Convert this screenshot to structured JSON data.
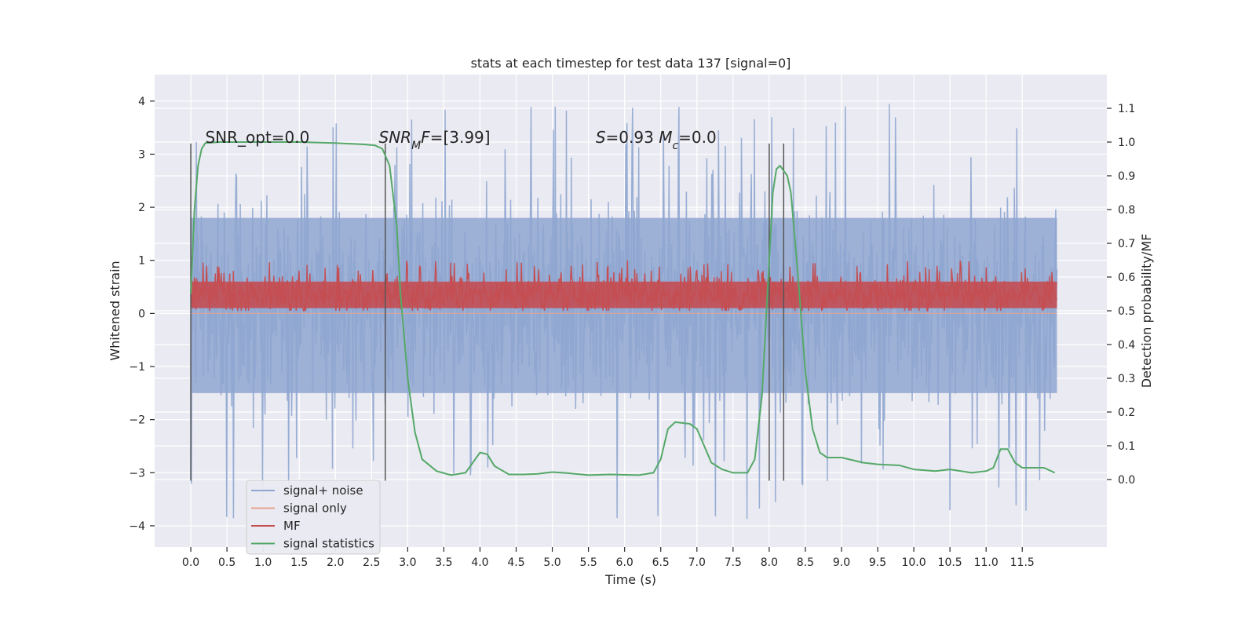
{
  "chart_data": {
    "type": "line",
    "title": "stats at each timestep for test data 137 [signal=0]",
    "xlabel": "Time (s)",
    "ylabel_left": "Whitened strain",
    "ylabel_right": "Detection probability/MF",
    "xlim": [
      -0.5,
      12.67
    ],
    "ylim_left": [
      -4.4,
      4.5
    ],
    "ylim_right": [
      -0.2,
      1.2
    ],
    "grid": true,
    "x_ticks": [
      0.0,
      0.5,
      1.0,
      1.5,
      2.0,
      2.5,
      3.0,
      3.5,
      4.0,
      4.5,
      5.0,
      5.5,
      6.0,
      6.5,
      7.0,
      7.5,
      8.0,
      8.5,
      9.0,
      9.5,
      10.0,
      10.5,
      11.0,
      11.5
    ],
    "x_tick_labels": [
      "0.0",
      "0.5",
      "1.0",
      "1.5",
      "2.0",
      "2.5",
      "3.0",
      "3.5",
      "4.0",
      "4.5",
      "5.0",
      "5.5",
      "6.0",
      "6.5",
      "7.0",
      "7.5",
      "8.0",
      "8.5",
      "9.0",
      "9.5",
      "10.0",
      "10.5",
      "11.0",
      "11.5"
    ],
    "y_left_ticks": [
      4,
      3,
      2,
      1,
      0,
      -1,
      -2,
      -3,
      -4
    ],
    "y_left_tick_labels": [
      "4",
      "3",
      "2",
      "1",
      "0",
      "−1",
      "−2",
      "−3",
      "−4"
    ],
    "y_right_ticks": [
      1.1,
      1.0,
      0.9,
      0.8,
      0.7,
      0.6,
      0.5,
      0.4,
      0.3,
      0.2,
      0.1,
      0.0
    ],
    "y_right_tick_labels": [
      "1.1",
      "1.0",
      "0.9",
      "0.8",
      "0.7",
      "0.6",
      "0.5",
      "0.4",
      "0.3",
      "0.2",
      "0.1",
      "0.0"
    ],
    "legend_placement": "lower-left",
    "series": [
      {
        "name": "signal+ noise",
        "axis": "left",
        "color": "#8fa6d0",
        "description": "dense noise trace between roughly -3 and +3",
        "x_range": [
          0.0,
          11.98
        ],
        "band_core": [
          -1.5,
          1.8
        ],
        "extremes": [
          -3.9,
          4.1
        ]
      },
      {
        "name": "signal only",
        "axis": "left",
        "color": "#e6a58f",
        "values_constant": 0.0
      },
      {
        "name": "MF",
        "axis": "left",
        "color": "#c44e52",
        "description": "dense matched-filter trace between about 0.05 and 0.9",
        "x_range": [
          0.0,
          11.98
        ],
        "band_core": [
          0.05,
          0.7
        ]
      },
      {
        "name": "signal statistics",
        "axis": "right",
        "color": "#55a868",
        "x": [
          0.0,
          0.05,
          0.1,
          0.15,
          0.2,
          0.4,
          1.0,
          1.5,
          2.0,
          2.4,
          2.55,
          2.65,
          2.75,
          2.85,
          2.9,
          3.0,
          3.1,
          3.2,
          3.4,
          3.6,
          3.8,
          3.9,
          4.0,
          4.1,
          4.2,
          4.4,
          4.6,
          4.8,
          5.0,
          5.2,
          5.5,
          5.8,
          6.0,
          6.2,
          6.4,
          6.5,
          6.6,
          6.7,
          6.9,
          7.0,
          7.1,
          7.2,
          7.35,
          7.5,
          7.7,
          7.8,
          7.9,
          8.0,
          8.05,
          8.1,
          8.15,
          8.25,
          8.3,
          8.4,
          8.5,
          8.6,
          8.7,
          8.8,
          9.0,
          9.3,
          9.5,
          9.8,
          10.0,
          10.3,
          10.5,
          10.8,
          11.0,
          11.1,
          11.2,
          11.3,
          11.4,
          11.5,
          11.8,
          11.95
        ],
        "values": [
          0.55,
          0.8,
          0.93,
          0.98,
          0.997,
          1.0,
          1.0,
          1.0,
          0.997,
          0.993,
          0.99,
          0.98,
          0.93,
          0.75,
          0.55,
          0.3,
          0.14,
          0.06,
          0.025,
          0.013,
          0.02,
          0.05,
          0.08,
          0.075,
          0.04,
          0.015,
          0.015,
          0.017,
          0.022,
          0.019,
          0.013,
          0.015,
          0.014,
          0.013,
          0.02,
          0.06,
          0.15,
          0.17,
          0.165,
          0.15,
          0.1,
          0.05,
          0.03,
          0.02,
          0.02,
          0.06,
          0.25,
          0.65,
          0.85,
          0.92,
          0.93,
          0.9,
          0.85,
          0.6,
          0.32,
          0.15,
          0.08,
          0.065,
          0.065,
          0.05,
          0.045,
          0.042,
          0.03,
          0.025,
          0.03,
          0.02,
          0.025,
          0.035,
          0.09,
          0.09,
          0.05,
          0.035,
          0.035,
          0.02
        ]
      }
    ],
    "vertical_lines": [
      {
        "x": 0.0,
        "y_range": [
          -3.15,
          3.2
        ],
        "color": "#555555"
      },
      {
        "x": 2.69,
        "y_range": [
          -3.15,
          3.2
        ],
        "color": "#555555"
      },
      {
        "x": 8.0,
        "y_range": [
          -3.15,
          3.2
        ],
        "color": "#555555"
      },
      {
        "x": 8.2,
        "y_range": [
          -3.15,
          3.2
        ],
        "color": "#555555"
      }
    ],
    "annotations": [
      {
        "text": "SNR_opt=0.0",
        "x": 0.2,
        "y": 3.2,
        "axis": "left"
      },
      {
        "text_parts": [
          {
            "t": "SNR",
            "italic": true
          },
          {
            "t": "M",
            "italic": true,
            "sub": true
          },
          {
            "t": "F",
            "italic": true
          },
          {
            "t": "=[3.99]"
          }
        ],
        "x": 2.6,
        "y": 3.2,
        "axis": "left"
      },
      {
        "text_parts": [
          {
            "t": "S",
            "italic": true
          },
          {
            "t": "=0.93   "
          },
          {
            "t": "M",
            "italic": true
          },
          {
            "t": "c",
            "italic": true,
            "sub": true
          },
          {
            "t": "=0.0"
          }
        ],
        "x": 5.6,
        "y": 3.2,
        "axis": "left"
      }
    ],
    "colors": {
      "plot_background": "#eaeaf2",
      "grid": "#ffffff",
      "text": "#262626"
    }
  }
}
